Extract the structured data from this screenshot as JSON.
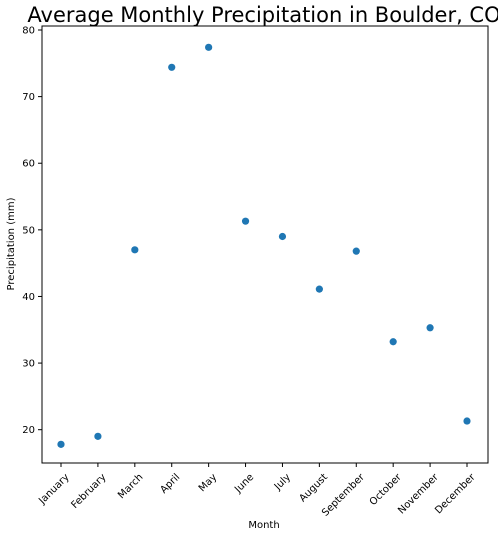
{
  "chart_data": {
    "type": "scatter",
    "title": "Average Monthly Precipitation in Boulder, CO",
    "xlabel": "Month",
    "ylabel": "Precipitation (mm)",
    "categories": [
      "January",
      "February",
      "March",
      "April",
      "May",
      "June",
      "July",
      "August",
      "September",
      "October",
      "November",
      "December"
    ],
    "values": [
      17.8,
      19.0,
      47.0,
      74.4,
      77.4,
      51.3,
      49.0,
      41.1,
      46.8,
      33.2,
      35.3,
      21.3
    ],
    "ylim": [
      15,
      80.6
    ],
    "yticks": [
      20,
      30,
      40,
      50,
      60,
      70,
      80
    ],
    "xtick_rotation_deg": 45,
    "grid": false,
    "marker_color": "#1f77b4"
  }
}
